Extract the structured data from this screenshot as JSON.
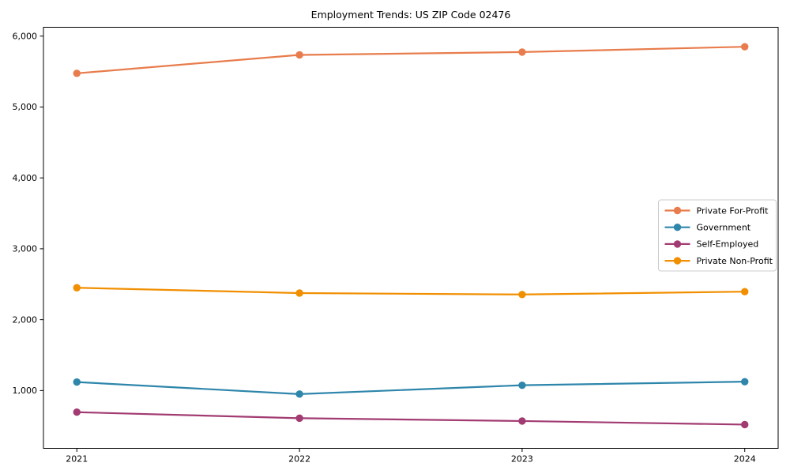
{
  "chart_data": {
    "type": "line",
    "title": "Employment Trends: US ZIP Code 02476",
    "xlabel": "",
    "ylabel": "",
    "x": [
      2021,
      2022,
      2023,
      2024
    ],
    "x_tick_labels": [
      "2021",
      "2022",
      "2023",
      "2024"
    ],
    "y_ticks": [
      1000,
      2000,
      3000,
      4000,
      5000,
      6000
    ],
    "y_tick_labels": [
      "1,000",
      "2,000",
      "3,000",
      "4,000",
      "5,000",
      "6,000"
    ],
    "xlim": [
      2020.85,
      2024.15
    ],
    "ylim": [
      185,
      6125
    ],
    "grid": false,
    "legend_position": "center-right",
    "axis_color": "#000000",
    "legend_border_color": "#cccccc",
    "series": [
      {
        "name": "Private For-Profit",
        "color": "#E87C4C",
        "values": [
          5475,
          5735,
          5775,
          5850
        ]
      },
      {
        "name": "Government",
        "color": "#2E86AB",
        "values": [
          1120,
          950,
          1075,
          1125
        ]
      },
      {
        "name": "Self-Employed",
        "color": "#A23B72",
        "values": [
          695,
          610,
          570,
          520
        ]
      },
      {
        "name": "Private Non-Profit",
        "color": "#F18F01",
        "values": [
          2450,
          2375,
          2355,
          2395
        ]
      }
    ]
  }
}
